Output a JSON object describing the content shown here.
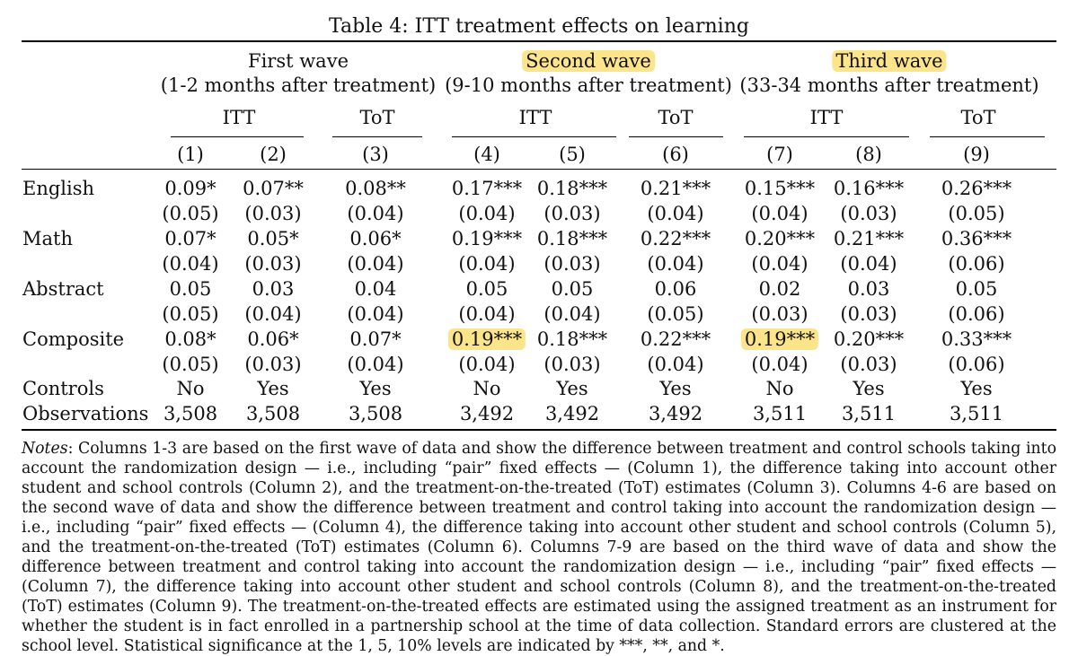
{
  "title": "Table 4: ITT treatment effects on learning",
  "waves": [
    {
      "name": "First wave",
      "sub": "(1-2 months after treatment)",
      "highlight": false
    },
    {
      "name": "Second wave",
      "sub": "(9-10 months after treatment)",
      "highlight": true
    },
    {
      "name": "Third wave",
      "sub": "(33-34 months after treatment)",
      "highlight": true
    }
  ],
  "group_labels": [
    "ITT",
    "ToT",
    "ITT",
    "ToT",
    "ITT",
    "ToT"
  ],
  "columns": [
    "(1)",
    "(2)",
    "(3)",
    "(4)",
    "(5)",
    "(6)",
    "(7)",
    "(8)",
    "(9)"
  ],
  "rows": [
    {
      "label": "English",
      "coef": [
        "0.09*",
        "0.07**",
        "0.08**",
        "0.17***",
        "0.18***",
        "0.21***",
        "0.15***",
        "0.16***",
        "0.26***"
      ],
      "se": [
        "(0.05)",
        "(0.03)",
        "(0.04)",
        "(0.04)",
        "(0.03)",
        "(0.04)",
        "(0.04)",
        "(0.03)",
        "(0.05)"
      ]
    },
    {
      "label": "Math",
      "coef": [
        "0.07*",
        "0.05*",
        "0.06*",
        "0.19***",
        "0.18***",
        "0.22***",
        "0.20***",
        "0.21***",
        "0.36***"
      ],
      "se": [
        "(0.04)",
        "(0.03)",
        "(0.04)",
        "(0.04)",
        "(0.03)",
        "(0.04)",
        "(0.04)",
        "(0.04)",
        "(0.06)"
      ]
    },
    {
      "label": "Abstract",
      "coef": [
        "0.05",
        "0.03",
        "0.04",
        "0.05",
        "0.05",
        "0.06",
        "0.02",
        "0.03",
        "0.05"
      ],
      "se": [
        "(0.05)",
        "(0.04)",
        "(0.04)",
        "(0.04)",
        "(0.04)",
        "(0.05)",
        "(0.03)",
        "(0.03)",
        "(0.06)"
      ]
    },
    {
      "label": "Composite",
      "coef": [
        "0.08*",
        "0.06*",
        "0.07*",
        "0.19***",
        "0.18***",
        "0.22***",
        "0.19***",
        "0.20***",
        "0.33***"
      ],
      "se": [
        "(0.05)",
        "(0.03)",
        "(0.04)",
        "(0.04)",
        "(0.03)",
        "(0.04)",
        "(0.04)",
        "(0.03)",
        "(0.06)"
      ],
      "highlight_cols": [
        3,
        6
      ]
    }
  ],
  "controls": {
    "label": "Controls",
    "values": [
      "No",
      "Yes",
      "Yes",
      "No",
      "Yes",
      "Yes",
      "No",
      "Yes",
      "Yes"
    ]
  },
  "observations": {
    "label": "Observations",
    "values": [
      "3,508",
      "3,508",
      "3,508",
      "3,492",
      "3,492",
      "3,492",
      "3,511",
      "3,511",
      "3,511"
    ]
  },
  "notes": {
    "lead": "Notes",
    "text": ": Columns 1-3 are based on the first wave of data and show the difference between treatment and control schools taking into account the randomization design — i.e., including “pair” fixed effects — (Column 1), the difference taking into account other student and school controls (Column 2), and the treatment-on-the-treated (ToT) estimates (Column 3). Columns 4-6 are based on the second wave of data and show the difference between treatment and control taking into account the randomization design — i.e., including “pair” fixed effects — (Column 4), the difference taking into account other student and school controls (Column 5), and the treatment-on-the-treated (ToT) estimates (Column 6). Columns 7-9 are based on the third wave of data and show the difference between treatment and control taking into account the randomization design — i.e., including “pair” fixed effects — (Column 7), the difference taking into account other student and school controls (Column 8), and the treatment-on-the-treated (ToT) estimates (Column 9). The treatment-on-the-treated effects are estimated using the assigned treatment as an instrument for whether the student is in fact enrolled in a partnership school at the time of data collection. Standard errors are clustered at the school level. Statistical significance at the 1, 5, 10% levels are indicated by ***, **, and *."
  }
}
